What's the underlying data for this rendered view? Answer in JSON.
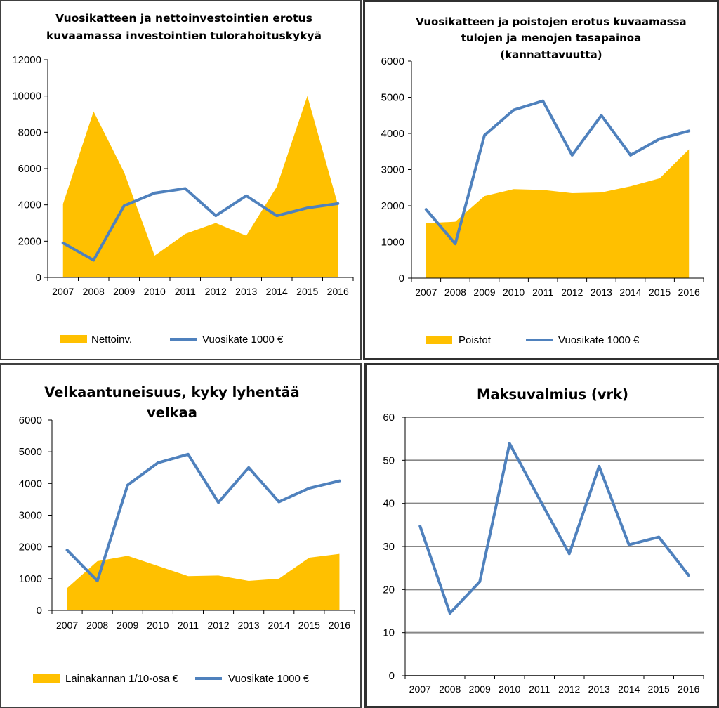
{
  "colors": {
    "area": "#FFC000",
    "line": "#4F81BD",
    "grid": "#878787",
    "axis": "#000000"
  },
  "chart_data": [
    {
      "type": "area",
      "title": [
        "Vuosikatteen ja nettoinvestointien erotus",
        "kuvaamassa investointien tulorahoituskykyä"
      ],
      "categories": [
        "2007",
        "2008",
        "2009",
        "2010",
        "2011",
        "2012",
        "2013",
        "2014",
        "2015",
        "2016"
      ],
      "ylim": [
        0,
        12000
      ],
      "yticks": [
        "0",
        "2000",
        "4000",
        "6000",
        "8000",
        "10000",
        "12000"
      ],
      "series": [
        {
          "name": "Nettoinv.",
          "kind": "area",
          "values": [
            4050,
            9150,
            5800,
            1200,
            2400,
            3000,
            2300,
            5000,
            10000,
            4000
          ]
        },
        {
          "name": "Vuosikate 1000 €",
          "kind": "line",
          "values": [
            1900,
            950,
            3950,
            4650,
            4900,
            3400,
            4500,
            3400,
            3830,
            4070
          ]
        }
      ],
      "grid": false,
      "legend_position": "bottom"
    },
    {
      "type": "area",
      "title": [
        "Vuosikatteen ja poistojen erotus kuvaamassa",
        "tulojen ja menojen tasapainoa",
        "(kannattavuutta)"
      ],
      "categories": [
        "2007",
        "2008",
        "2009",
        "2010",
        "2011",
        "2012",
        "2013",
        "2014",
        "2015",
        "2016"
      ],
      "ylim": [
        0,
        6000
      ],
      "yticks": [
        "0",
        "1000",
        "2000",
        "3000",
        "4000",
        "5000",
        "6000"
      ],
      "series": [
        {
          "name": "Poistot",
          "kind": "area",
          "values": [
            1520,
            1560,
            2270,
            2460,
            2440,
            2350,
            2370,
            2540,
            2760,
            3560
          ]
        },
        {
          "name": "Vuosikate 1000 €",
          "kind": "line",
          "values": [
            1900,
            950,
            3950,
            4650,
            4900,
            3400,
            4500,
            3400,
            3850,
            4070
          ]
        }
      ],
      "grid": false,
      "legend_position": "bottom"
    },
    {
      "type": "area",
      "title": [
        "Velkaantuneisuus, kyky lyhentää",
        "velkaa"
      ],
      "categories": [
        "2007",
        "2008",
        "2009",
        "2010",
        "2011",
        "2012",
        "2013",
        "2014",
        "2015",
        "2016"
      ],
      "ylim": [
        0,
        6000
      ],
      "yticks": [
        "0",
        "1000",
        "2000",
        "3000",
        "4000",
        "5000",
        "6000"
      ],
      "series": [
        {
          "name": "Lainakannan 1/10-osa €",
          "kind": "area",
          "values": [
            700,
            1550,
            1720,
            1400,
            1080,
            1100,
            930,
            1000,
            1660,
            1780
          ]
        },
        {
          "name": "Vuosikate 1000 €",
          "kind": "line",
          "values": [
            1900,
            930,
            3950,
            4650,
            4920,
            3400,
            4500,
            3420,
            3850,
            4080
          ]
        }
      ],
      "grid": false,
      "legend_position": "bottom"
    },
    {
      "type": "line",
      "title": [
        "Maksuvalmius (vrk)"
      ],
      "categories": [
        "2007",
        "2008",
        "2009",
        "2010",
        "2011",
        "2012",
        "2013",
        "2014",
        "2015",
        "2016"
      ],
      "ylim": [
        0,
        60
      ],
      "yticks": [
        "0",
        "10",
        "20",
        "30",
        "40",
        "50",
        "60"
      ],
      "series": [
        {
          "kind": "line",
          "values": [
            34.7,
            14.5,
            21.8,
            53.9,
            41.0,
            28.3,
            48.6,
            30.4,
            32.2,
            23.3
          ]
        }
      ],
      "grid": true,
      "legend_position": "none"
    }
  ]
}
